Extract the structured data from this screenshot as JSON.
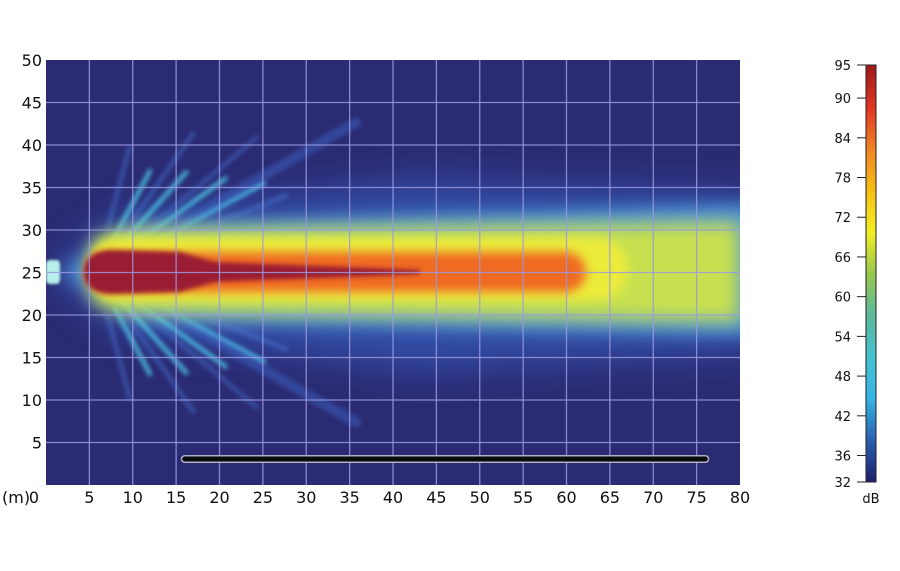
{
  "chart_data": {
    "type": "heatmap",
    "title": "",
    "xlabel": "(m)",
    "ylabel": "",
    "xlim": [
      0,
      80
    ],
    "ylim": [
      0,
      50
    ],
    "grid": true,
    "x_ticks": [
      0,
      5,
      10,
      15,
      20,
      25,
      30,
      35,
      40,
      45,
      50,
      55,
      60,
      65,
      70,
      75,
      80
    ],
    "y_ticks": [
      5,
      10,
      15,
      20,
      25,
      30,
      35,
      40,
      45,
      50
    ],
    "x_tick_labels": [
      "0",
      "5",
      "10",
      "15",
      "20",
      "25",
      "30",
      "35",
      "40",
      "45",
      "50",
      "55",
      "60",
      "65",
      "70",
      "75",
      "80"
    ],
    "y_tick_labels": [
      "5",
      "10",
      "15",
      "20",
      "25",
      "30",
      "35",
      "40",
      "45",
      "50"
    ],
    "description_of_field": "sound level beam from source at x≈0, y≈25 extending to x≈80; peak >90 dB near x 5–42, orange to x≈60, yellow (~70 dB) to x≈80",
    "source": {
      "x": 0,
      "y": 25
    },
    "barrier": {
      "x_start": 16,
      "x_end": 76,
      "y": 4
    },
    "colorbar": {
      "label": "dB",
      "range": [
        32,
        95
      ],
      "ticks": [
        95,
        90,
        84,
        78,
        72,
        66,
        60,
        54,
        48,
        42,
        36,
        32
      ],
      "tick_labels": [
        "95",
        "90",
        "84",
        "78",
        "72",
        "66",
        "60",
        "54",
        "48",
        "42",
        "36",
        "32"
      ],
      "position": "right",
      "colors": [
        "#1f1f6e",
        "#2a5fb0",
        "#34b4e4",
        "#44c4d0",
        "#5cb89c",
        "#98c84c",
        "#f2ee22",
        "#f8be14",
        "#f08224",
        "#e03424",
        "#9c1818"
      ]
    },
    "background_color": "#2b2b73"
  }
}
